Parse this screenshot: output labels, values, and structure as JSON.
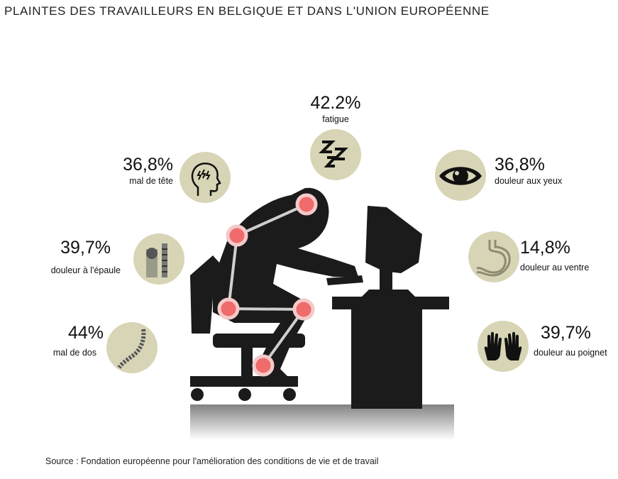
{
  "title": "PLAINTES DES TRAVAILLEURS EN BELGIQUE ET DANS L'UNION EUROPÉENNE",
  "complaints": {
    "fatigue": {
      "value": "42.2%",
      "label": "fatigue",
      "icon": "zzz-icon"
    },
    "head": {
      "value": "36,8%",
      "label": "mal de tête",
      "icon": "head-icon"
    },
    "eyes": {
      "value": "36,8%",
      "label": "douleur aux yeux",
      "icon": "eye-icon"
    },
    "shoulder": {
      "value": "39,7%",
      "label": "douleur à l'épaule",
      "icon": "shoulder-icon"
    },
    "stomach": {
      "value": "14,8%",
      "label": "douleur au ventre",
      "icon": "stomach-icon"
    },
    "back": {
      "value": "44%",
      "label": "mal de dos",
      "icon": "spine-icon"
    },
    "wrist": {
      "value": "39,7%",
      "label": "douleur au poignet",
      "icon": "hands-icon"
    }
  },
  "colors": {
    "circle": "#d7d5b5",
    "silhouette": "#1b1b1b",
    "joint": "#f06b6b"
  },
  "source": "Source : Fondation européenne pour l'amélioration des conditions de vie et de travail"
}
